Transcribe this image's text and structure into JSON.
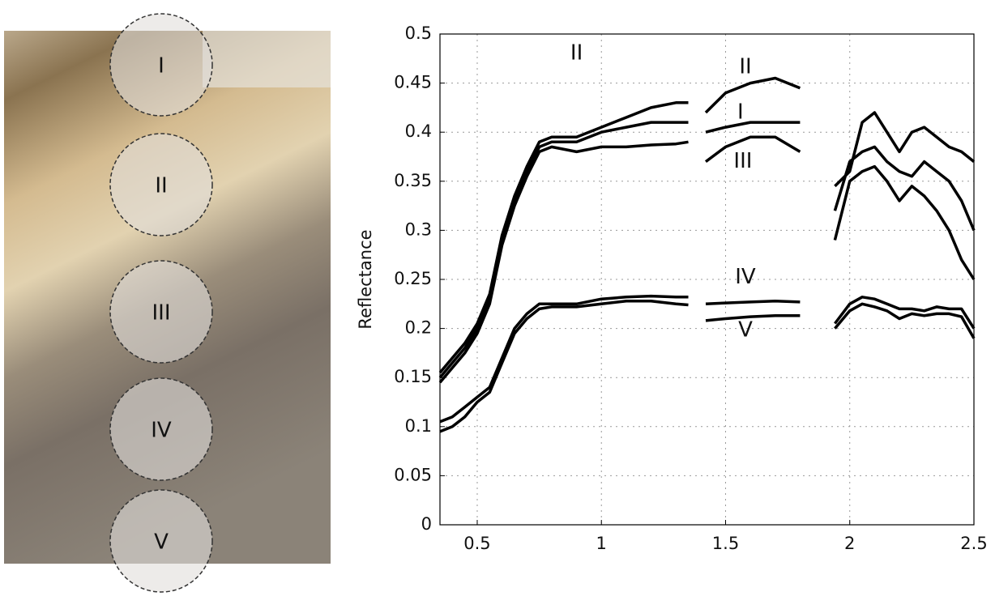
{
  "photo_labels": [
    "I",
    "II",
    "III",
    "IV",
    "V"
  ],
  "chart_data": {
    "type": "line",
    "y_label": "Reflectance",
    "annotations": [
      "II"
    ],
    "x": [
      0.35,
      0.4,
      0.45,
      0.5,
      0.55,
      0.6,
      0.65,
      0.7,
      0.75,
      0.8,
      0.9,
      1.0,
      1.1,
      1.2,
      1.3,
      1.35,
      1.38,
      1.42,
      1.5,
      1.6,
      1.7,
      1.8,
      1.87,
      1.94,
      2.0,
      2.05,
      2.1,
      2.15,
      2.2,
      2.25,
      2.3,
      2.35,
      2.4,
      2.45,
      2.5
    ],
    "series": [
      {
        "name": "I",
        "color": "#000000",
        "values": [
          0.15,
          0.165,
          0.18,
          0.2,
          0.23,
          0.29,
          0.33,
          0.36,
          0.385,
          0.39,
          0.39,
          0.4,
          0.405,
          0.41,
          0.41,
          0.41,
          null,
          0.4,
          0.405,
          0.41,
          0.41,
          0.41,
          null,
          0.32,
          0.37,
          0.38,
          0.385,
          0.37,
          0.36,
          0.355,
          0.37,
          0.36,
          0.35,
          0.33,
          0.3
        ]
      },
      {
        "name": "II",
        "color": "#000000",
        "values": [
          0.155,
          0.17,
          0.185,
          0.205,
          0.235,
          0.295,
          0.335,
          0.365,
          0.39,
          0.395,
          0.395,
          0.405,
          0.415,
          0.425,
          0.43,
          0.43,
          null,
          0.42,
          0.44,
          0.45,
          0.455,
          0.445,
          null,
          0.345,
          0.36,
          0.41,
          0.42,
          0.4,
          0.38,
          0.4,
          0.405,
          0.395,
          0.385,
          0.38,
          0.37
        ]
      },
      {
        "name": "III",
        "color": "#000000",
        "values": [
          0.145,
          0.16,
          0.175,
          0.195,
          0.225,
          0.285,
          0.325,
          0.355,
          0.38,
          0.385,
          0.38,
          0.385,
          0.385,
          0.387,
          0.388,
          0.39,
          null,
          0.37,
          0.385,
          0.395,
          0.395,
          0.38,
          null,
          0.29,
          0.35,
          0.36,
          0.365,
          0.35,
          0.33,
          0.345,
          0.335,
          0.32,
          0.3,
          0.27,
          0.25
        ]
      },
      {
        "name": "IV",
        "color": "#000000",
        "values": [
          0.105,
          0.11,
          0.12,
          0.13,
          0.14,
          0.17,
          0.2,
          0.215,
          0.225,
          0.225,
          0.225,
          0.23,
          0.232,
          0.233,
          0.232,
          0.232,
          null,
          0.225,
          0.226,
          0.227,
          0.228,
          0.227,
          null,
          0.205,
          0.225,
          0.232,
          0.23,
          0.225,
          0.22,
          0.22,
          0.218,
          0.222,
          0.22,
          0.22,
          0.2
        ]
      },
      {
        "name": "V",
        "color": "#000000",
        "values": [
          0.095,
          0.1,
          0.11,
          0.125,
          0.135,
          0.165,
          0.195,
          0.21,
          0.22,
          0.222,
          0.222,
          0.225,
          0.228,
          0.228,
          0.225,
          0.224,
          null,
          0.208,
          0.21,
          0.212,
          0.213,
          0.213,
          null,
          0.2,
          0.218,
          0.225,
          0.222,
          0.218,
          0.21,
          0.215,
          0.213,
          0.215,
          0.215,
          0.212,
          0.19
        ]
      }
    ],
    "xlim": [
      0.35,
      2.5
    ],
    "xticks": [
      0.5,
      1,
      1.5,
      2,
      2.5
    ],
    "ylim": [
      0,
      0.5
    ],
    "yticks": [
      0,
      0.05,
      0.1,
      0.15,
      0.2,
      0.25,
      0.3,
      0.35,
      0.4,
      0.45,
      0.5
    ],
    "grid": true
  }
}
